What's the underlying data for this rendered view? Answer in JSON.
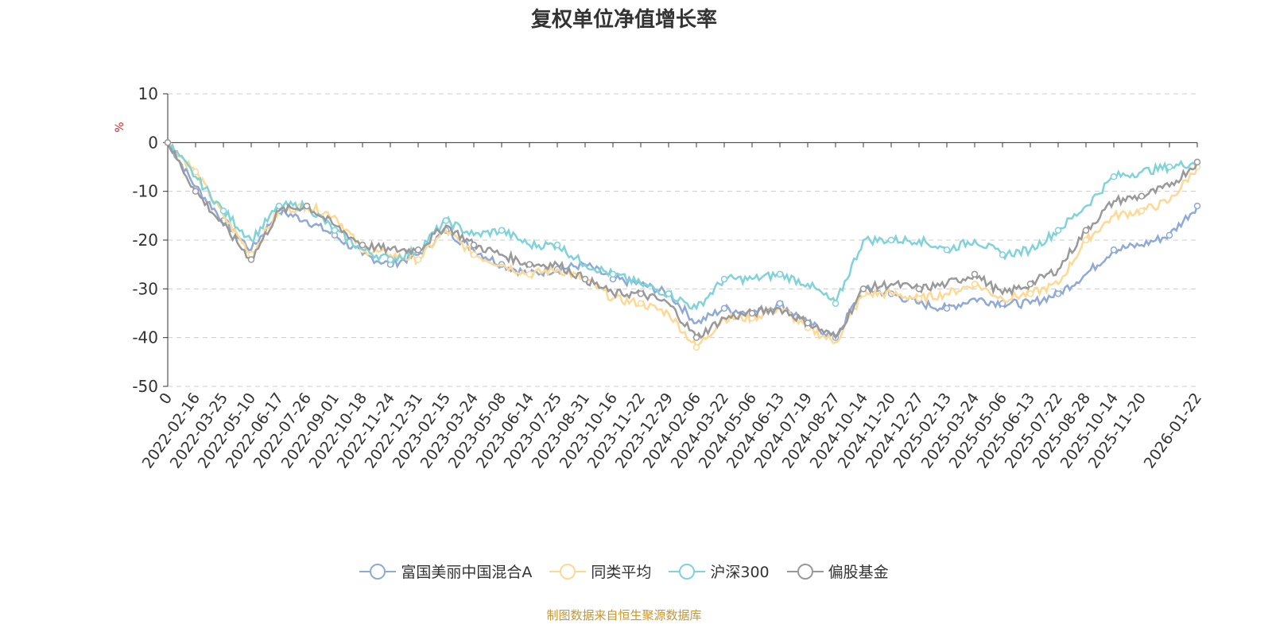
{
  "chart_data": {
    "type": "line",
    "title": "复权单位净值增长率",
    "ylabel": "%",
    "ylim": [
      -50,
      10
    ],
    "yticks": [
      10,
      0,
      -10,
      -20,
      -30,
      -40,
      -50
    ],
    "grid": true,
    "legend_placement": "bottom",
    "categories": [
      "0",
      "2022-02-16",
      "2022-03-25",
      "2022-05-10",
      "2022-06-17",
      "2022-07-26",
      "2022-09-01",
      "2022-10-18",
      "2022-11-24",
      "2022-12-31",
      "2023-02-15",
      "2023-03-24",
      "2023-05-08",
      "2023-06-14",
      "2023-07-25",
      "2023-08-31",
      "2023-10-16",
      "2023-11-22",
      "2023-12-29",
      "2024-02-06",
      "2024-03-22",
      "2024-05-06",
      "2024-06-13",
      "2024-07-19",
      "2024-08-27",
      "2024-10-14",
      "2024-11-20",
      "2024-12-27",
      "2025-02-13",
      "2025-03-24",
      "2025-05-06",
      "2025-06-13",
      "2025-07-22",
      "2025-08-28",
      "2025-10-14",
      "2025-11-20",
      "",
      "2026-01-22"
    ],
    "series": [
      {
        "name": "富国美丽中国混合A",
        "color": "#8fa9d8",
        "values": [
          0,
          -9,
          -16,
          -22,
          -14,
          -16,
          -19,
          -23,
          -25,
          -23,
          -18,
          -22,
          -25,
          -27,
          -26,
          -25,
          -28,
          -29,
          -31,
          -37,
          -34,
          -35,
          -33,
          -37,
          -40,
          -30,
          -31,
          -33,
          -34,
          -32,
          -33,
          -33,
          -31,
          -27,
          -22,
          -21,
          -19,
          -13
        ]
      },
      {
        "name": "同类平均",
        "color": "#ffd993",
        "values": [
          0,
          -6,
          -15,
          -23,
          -14,
          -13,
          -15,
          -22,
          -23,
          -24,
          -18,
          -23,
          -25,
          -27,
          -26,
          -28,
          -32,
          -33,
          -35,
          -42,
          -36,
          -36,
          -34,
          -38,
          -41,
          -31,
          -31,
          -32,
          -31,
          -29,
          -32,
          -31,
          -29,
          -20,
          -15,
          -14,
          -12,
          -5
        ]
      },
      {
        "name": "沪深300",
        "color": "#7fd3d9",
        "values": [
          0,
          -7,
          -14,
          -20,
          -13,
          -13,
          -18,
          -22,
          -24,
          -22,
          -16,
          -19,
          -18,
          -21,
          -21,
          -25,
          -27,
          -29,
          -31,
          -34,
          -28,
          -28,
          -27,
          -29,
          -33,
          -20,
          -20,
          -20,
          -22,
          -20,
          -23,
          -22,
          -18,
          -13,
          -7,
          -6,
          -5,
          -4
        ]
      },
      {
        "name": "偏股基金",
        "color": "#999999",
        "values": [
          0,
          -10,
          -17,
          -24,
          -14,
          -13,
          -17,
          -21,
          -22,
          -22,
          -17,
          -21,
          -23,
          -25,
          -25,
          -28,
          -31,
          -31,
          -33,
          -40,
          -36,
          -35,
          -34,
          -37,
          -40,
          -30,
          -29,
          -30,
          -29,
          -27,
          -31,
          -29,
          -26,
          -18,
          -12,
          -11,
          -9,
          -4
        ]
      }
    ]
  },
  "source": "制图数据来自恒生聚源数据库"
}
